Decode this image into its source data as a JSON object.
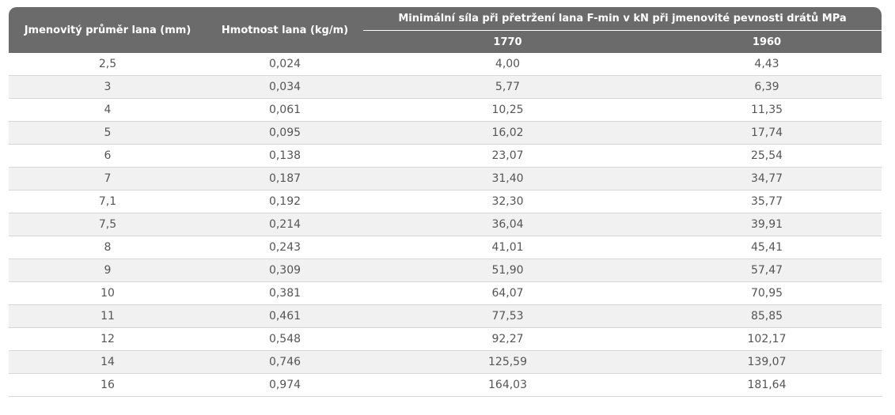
{
  "table": {
    "headers": {
      "diameter": "Jmenovitý průměr lana (mm)",
      "mass": "Hmotnost lana (kg/m)",
      "force_group": "Minimální síla při přetržení lana F-min v kN při jmenovité pevnosti drátů MPa",
      "strength_1770": "1770",
      "strength_1960": "1960"
    },
    "rows": [
      [
        "2,5",
        "0,024",
        "4,00",
        "4,43"
      ],
      [
        "3",
        "0,034",
        "5,77",
        "6,39"
      ],
      [
        "4",
        "0,061",
        "10,25",
        "11,35"
      ],
      [
        "5",
        "0,095",
        "16,02",
        "17,74"
      ],
      [
        "6",
        "0,138",
        "23,07",
        "25,54"
      ],
      [
        "7",
        "0,187",
        "31,40",
        "34,77"
      ],
      [
        "7,1",
        "0,192",
        "32,30",
        "35,77"
      ],
      [
        "7,5",
        "0,214",
        "36,04",
        "39,91"
      ],
      [
        "8",
        "0,243",
        "41,01",
        "45,41"
      ],
      [
        "9",
        "0,309",
        "51,90",
        "57,47"
      ],
      [
        "10",
        "0,381",
        "64,07",
        "70,95"
      ],
      [
        "11",
        "0,461",
        "77,53",
        "85,85"
      ],
      [
        "12",
        "0,548",
        "92,27",
        "102,17"
      ],
      [
        "14",
        "0,746",
        "125,59",
        "139,07"
      ],
      [
        "16",
        "0,974",
        "164,03",
        "181,64"
      ]
    ]
  },
  "colors": {
    "header_bg": "#6b6b6b",
    "header_text": "#ffffff",
    "row_alt_bg": "#f1f1f1",
    "cell_text": "#555555",
    "divider": "#d6d6d6"
  }
}
